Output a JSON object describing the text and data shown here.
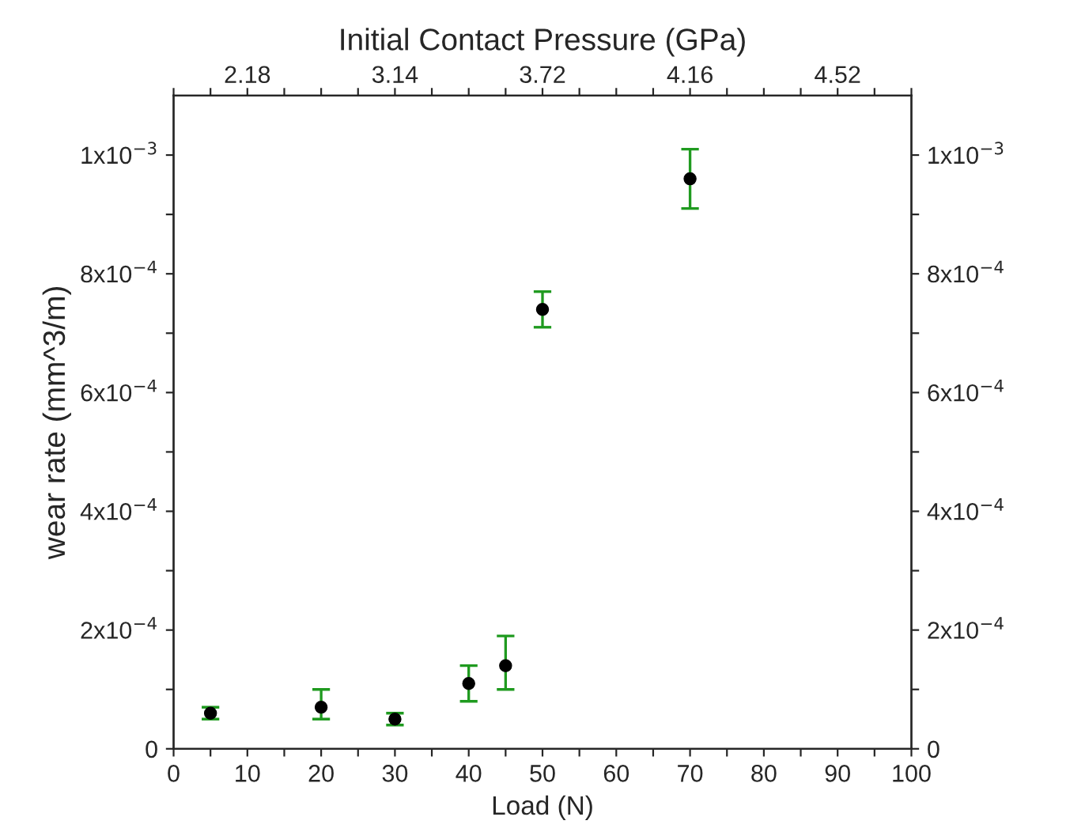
{
  "chart_data": {
    "type": "scatter",
    "xlabel": "Load (N)",
    "ylabel": "wear rate (mm^3/m)",
    "x2label": "Initial Contact Pressure (GPa)",
    "series": [
      {
        "color": "#000000",
        "x": [
          5,
          20,
          30,
          40,
          45,
          50,
          70
        ],
        "values": [
          6e-05,
          7e-05,
          5e-05,
          0.00011,
          0.00014,
          0.00074,
          0.00096
        ],
        "errors": [
          [
            5e-05,
            7e-05
          ],
          [
            5e-05,
            0.0001
          ],
          [
            4e-05,
            6e-05
          ],
          [
            8e-05,
            0.00014
          ],
          [
            0.0001,
            0.00019
          ],
          [
            0.00071,
            0.00077
          ],
          [
            0.00091,
            0.00101
          ]
        ]
      }
    ],
    "marker": "circle",
    "grid": false,
    "xlim": [
      0,
      100
    ],
    "xticks": [
      0,
      {
        "value": 5,
        "label": null
      },
      10,
      {
        "value": 15,
        "label": null
      },
      20,
      {
        "value": 25,
        "label": null
      },
      30,
      {
        "value": 35,
        "label": null
      },
      40,
      {
        "value": 45,
        "label": null
      },
      50,
      {
        "value": 55,
        "label": null
      },
      60,
      {
        "value": 65,
        "label": null
      },
      70,
      {
        "value": 75,
        "label": null
      },
      80,
      {
        "value": 85,
        "label": null
      },
      90,
      {
        "value": 95,
        "label": null
      },
      100
    ],
    "annotations": [
      "2.18",
      "3.14",
      "3.72",
      "4.16",
      "4.52"
    ],
    "ylim": [
      0,
      0.0011
    ],
    "yticks": [
      0,
      {
        "value": 0.0001,
        "label": null
      },
      {
        "value": 0.0002,
        "label": "2x10$^{−4}$"
      },
      {
        "value": 0.0003,
        "label": null
      },
      {
        "value": 0.0004,
        "label": "4x10$^{−4}$"
      },
      {
        "value": 0.0005,
        "label": null
      },
      {
        "value": 0.0006,
        "label": "6x10$^{−4}$"
      },
      {
        "value": 0.0007,
        "label": null
      },
      {
        "value": 0.0008,
        "label": "8x10$^{−4}$"
      },
      {
        "value": 0.0009,
        "label": null
      },
      {
        "value": 0.001,
        "label": "1x10$^{−3}$"
      }
    ],
    "y2lim": [
      0,
      0.0011
    ],
    "y2ticks": [
      0,
      {
        "value": 0.0001,
        "label": null
      },
      {
        "value": 0.0002,
        "label": "2x10$^{−4}$"
      },
      {
        "value": 0.0003,
        "label": null
      },
      {
        "value": 0.0004,
        "label": "4x10$^{−4}$"
      },
      {
        "value": 0.0005,
        "label": null
      },
      {
        "value": 0.0006,
        "label": "6x10$^{−4}$"
      },
      {
        "value": 0.0007,
        "label": null
      },
      {
        "value": 0.0008,
        "label": "8x10$^{−4}$"
      },
      {
        "value": 0.0009,
        "label": null
      },
      {
        "value": 0.001,
        "label": "1x10$^{−3}$"
      }
    ]
  }
}
